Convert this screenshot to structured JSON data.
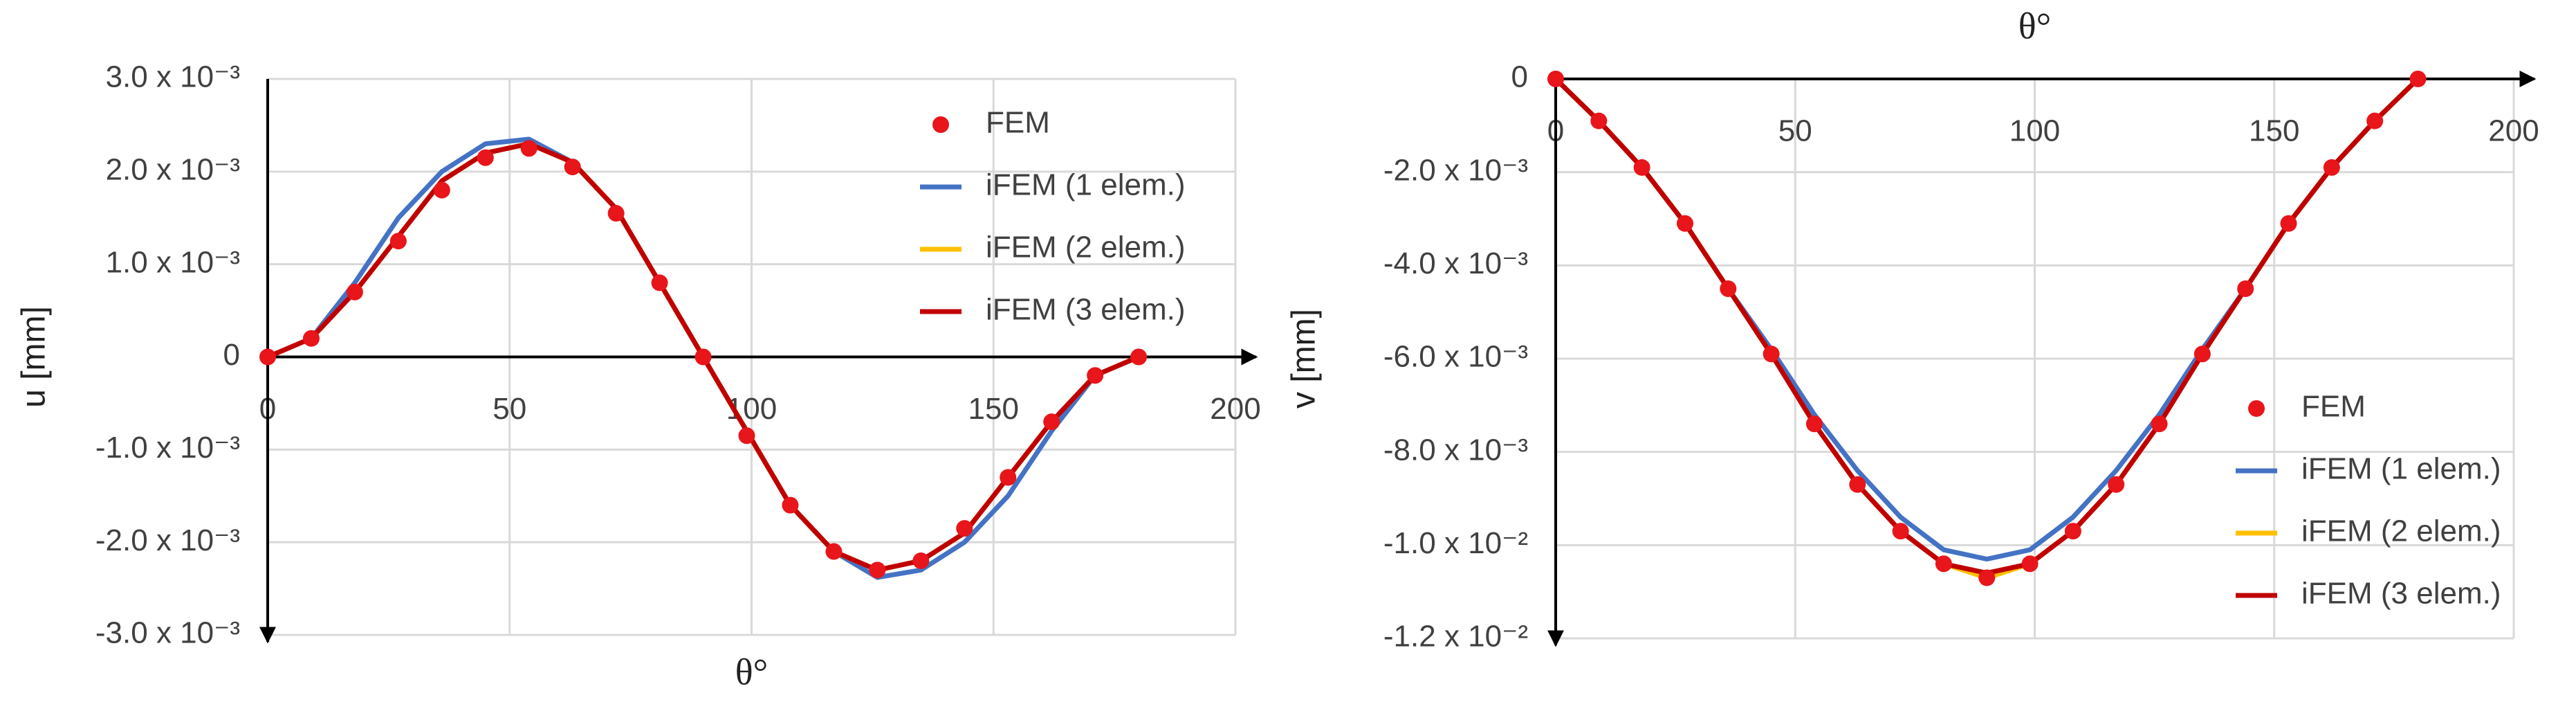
{
  "chart_data": [
    {
      "type": "line",
      "x_label": "θ°",
      "y_label": "u [mm]",
      "legend_position": "upper right",
      "grid": true,
      "x": [
        0,
        9,
        18,
        27,
        36,
        45,
        54,
        63,
        72,
        81,
        90,
        99,
        108,
        117,
        126,
        135,
        144,
        153,
        162,
        171,
        180
      ],
      "xlim": [
        0,
        200
      ],
      "xticks": [
        0,
        50,
        100,
        150,
        200
      ],
      "ylim": [
        -0.003,
        0.003
      ],
      "yticks": [
        {
          "value": -0.003,
          "label": "-3.0 x 10⁻³"
        },
        {
          "value": -0.002,
          "label": "-2.0 x 10⁻³"
        },
        {
          "value": -0.001,
          "label": "-1.0 x 10⁻³"
        },
        0,
        {
          "value": 0.001,
          "label": "1.0 x 10⁻³"
        },
        {
          "value": 0.002,
          "label": "2.0 x 10⁻³"
        },
        {
          "value": 0.003,
          "label": "3.0 x 10⁻³"
        }
      ],
      "series": [
        {
          "name": "FEM",
          "type": "scatter",
          "color": "#e8151b",
          "values": [
            0,
            0.0002,
            0.0007,
            0.00125,
            0.0018,
            0.00215,
            0.00225,
            0.00205,
            0.00155,
            0.0008,
            0,
            -0.00085,
            -0.0016,
            -0.0021,
            -0.0023,
            -0.0022,
            -0.00185,
            -0.0013,
            -0.0007,
            -0.0002,
            0
          ]
        },
        {
          "name": "iFEM (1 elem.)",
          "type": "line",
          "color": "#4472c4",
          "values": [
            0,
            0.0002,
            0.0008,
            0.0015,
            0.002,
            0.0023,
            0.00235,
            0.0021,
            0.0016,
            0.0008,
            0,
            -0.0008,
            -0.0016,
            -0.0021,
            -0.00238,
            -0.0023,
            -0.002,
            -0.0015,
            -0.0008,
            -0.0002,
            0
          ]
        },
        {
          "name": "iFEM (2 elem.)",
          "type": "line",
          "color": "#ffc000",
          "values": [
            0,
            0.0002,
            0.0007,
            0.0013,
            0.0019,
            0.0022,
            0.0023,
            0.0021,
            0.0016,
            0.0008,
            0,
            -0.0008,
            -0.0016,
            -0.0021,
            -0.0023,
            -0.0022,
            -0.0019,
            -0.0013,
            -0.0007,
            -0.0002,
            0
          ]
        },
        {
          "name": "iFEM (3 elem.)",
          "type": "line",
          "color": "#c00000",
          "values": [
            0,
            0.0002,
            0.0007,
            0.0013,
            0.0019,
            0.0022,
            0.0023,
            0.0021,
            0.0016,
            0.0008,
            0,
            -0.0008,
            -0.0016,
            -0.0021,
            -0.0023,
            -0.0022,
            -0.0019,
            -0.0013,
            -0.0007,
            -0.0002,
            0
          ]
        }
      ]
    },
    {
      "type": "line",
      "x_label": "θ°",
      "y_label": "v [mm]",
      "legend_position": "lower right",
      "grid": true,
      "x": [
        0,
        9,
        18,
        27,
        36,
        45,
        54,
        63,
        72,
        81,
        90,
        99,
        108,
        117,
        126,
        135,
        144,
        153,
        162,
        171,
        180
      ],
      "xlim": [
        0,
        200
      ],
      "xticks": [
        0,
        50,
        100,
        150,
        200
      ],
      "ylim": [
        -0.012,
        0
      ],
      "yticks": [
        {
          "value": -0.012,
          "label": "-1.2 x 10⁻²"
        },
        {
          "value": -0.01,
          "label": "-1.0 x 10⁻²"
        },
        {
          "value": -0.008,
          "label": "-8.0 x 10⁻³"
        },
        {
          "value": -0.006,
          "label": "-6.0 x 10⁻³"
        },
        {
          "value": -0.004,
          "label": "-4.0 x 10⁻³"
        },
        {
          "value": -0.002,
          "label": "-2.0 x 10⁻³"
        },
        0
      ],
      "series": [
        {
          "name": "FEM",
          "type": "scatter",
          "color": "#e8151b",
          "values": [
            0,
            -0.0009,
            -0.0019,
            -0.0031,
            -0.0045,
            -0.0059,
            -0.0074,
            -0.0087,
            -0.0097,
            -0.0104,
            -0.0107,
            -0.0104,
            -0.0097,
            -0.0087,
            -0.0074,
            -0.0059,
            -0.0045,
            -0.0031,
            -0.0019,
            -0.0009,
            0
          ]
        },
        {
          "name": "iFEM (1 elem.)",
          "type": "line",
          "color": "#4472c4",
          "values": [
            0,
            -0.0009,
            -0.0019,
            -0.0031,
            -0.0045,
            -0.0058,
            -0.0072,
            -0.0084,
            -0.0094,
            -0.0101,
            -0.0103,
            -0.0101,
            -0.0094,
            -0.0084,
            -0.0072,
            -0.0058,
            -0.0045,
            -0.0031,
            -0.0019,
            -0.0009,
            0
          ]
        },
        {
          "name": "iFEM (2 elem.)",
          "type": "line",
          "color": "#ffc000",
          "values": [
            0,
            -0.0009,
            -0.0019,
            -0.0031,
            -0.0045,
            -0.0059,
            -0.0074,
            -0.0087,
            -0.0097,
            -0.0104,
            -0.0107,
            -0.0104,
            -0.0097,
            -0.0087,
            -0.0074,
            -0.0059,
            -0.0045,
            -0.0031,
            -0.0019,
            -0.0009,
            0
          ]
        },
        {
          "name": "iFEM (3 elem.)",
          "type": "line",
          "color": "#c00000",
          "values": [
            0,
            -0.0009,
            -0.0019,
            -0.0031,
            -0.0045,
            -0.0059,
            -0.0074,
            -0.0087,
            -0.0097,
            -0.0104,
            -0.0106,
            -0.0104,
            -0.0097,
            -0.0087,
            -0.0074,
            -0.0059,
            -0.0045,
            -0.0031,
            -0.0019,
            -0.0009,
            0
          ]
        }
      ]
    }
  ]
}
